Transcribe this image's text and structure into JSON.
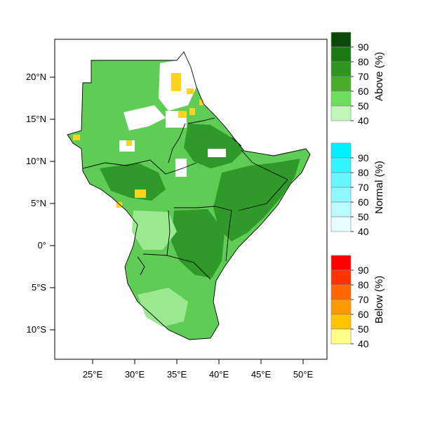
{
  "map": {
    "lat_ticks": [
      "20°N",
      "15°N",
      "10°N",
      "5°N",
      "0°",
      "5°S",
      "10°S"
    ],
    "lon_ticks": [
      "25°E",
      "30°E",
      "35°E",
      "40°E",
      "45°E",
      "50°E"
    ],
    "colors": {
      "land_base": "#5fcc55",
      "light_green": "#9be890",
      "dark_green": "#2f9a2a",
      "white_patch": "#ffffff",
      "yellow": "#ffd21e",
      "border": "#000000"
    }
  },
  "legends": [
    {
      "title": "Above (%)",
      "labels": [
        "90",
        "80",
        "70",
        "60",
        "50",
        "40"
      ],
      "colors": [
        "#0a4a08",
        "#1a7a14",
        "#2e961f",
        "#47ad2b",
        "#6ddd5d",
        "#bff5b9"
      ]
    },
    {
      "title": "Normal (%)",
      "labels": [
        "90",
        "80",
        "70",
        "60",
        "50",
        "40"
      ],
      "colors": [
        "#00f0ff",
        "#33f4ff",
        "#66f6ff",
        "#8ef8ff",
        "#b9fbff",
        "#e6feff"
      ]
    },
    {
      "title": "Below (%)",
      "labels": [
        "90",
        "80",
        "70",
        "60",
        "50",
        "40"
      ],
      "colors": [
        "#ff0000",
        "#ff3300",
        "#ff6600",
        "#ff9900",
        "#ffc400",
        "#ffff88"
      ]
    }
  ]
}
